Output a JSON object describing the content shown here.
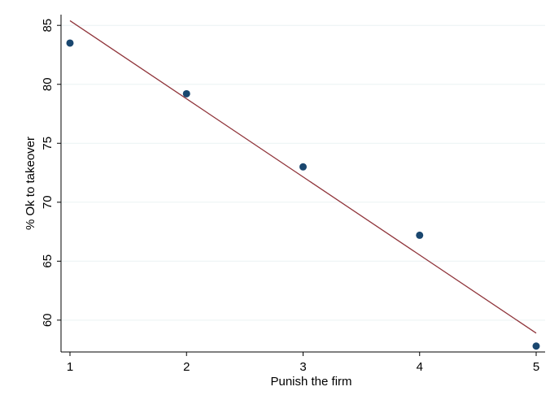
{
  "chart_data": {
    "type": "scatter",
    "title": "",
    "xlabel": "Punish the firm",
    "ylabel": "% Ok to takeover",
    "xlim": [
      1,
      5
    ],
    "ylim": [
      57.3,
      86.6
    ],
    "xticks": [
      1,
      2,
      3,
      4,
      5
    ],
    "yticks": [
      60,
      65,
      70,
      75,
      80,
      85
    ],
    "grid": "horizontal",
    "legend": "none",
    "points": [
      {
        "x": 1,
        "y": 83.5
      },
      {
        "x": 2,
        "y": 79.2
      },
      {
        "x": 3,
        "y": 73.0
      },
      {
        "x": 4,
        "y": 67.2
      },
      {
        "x": 5,
        "y": 57.8
      }
    ],
    "fit_line": {
      "x": [
        1,
        5
      ],
      "y": [
        85.4,
        58.9
      ]
    },
    "colors": {
      "points": "#1a476f",
      "fit_line": "#90353b",
      "grid": "#eaf2f3",
      "axis": "#000000"
    }
  }
}
